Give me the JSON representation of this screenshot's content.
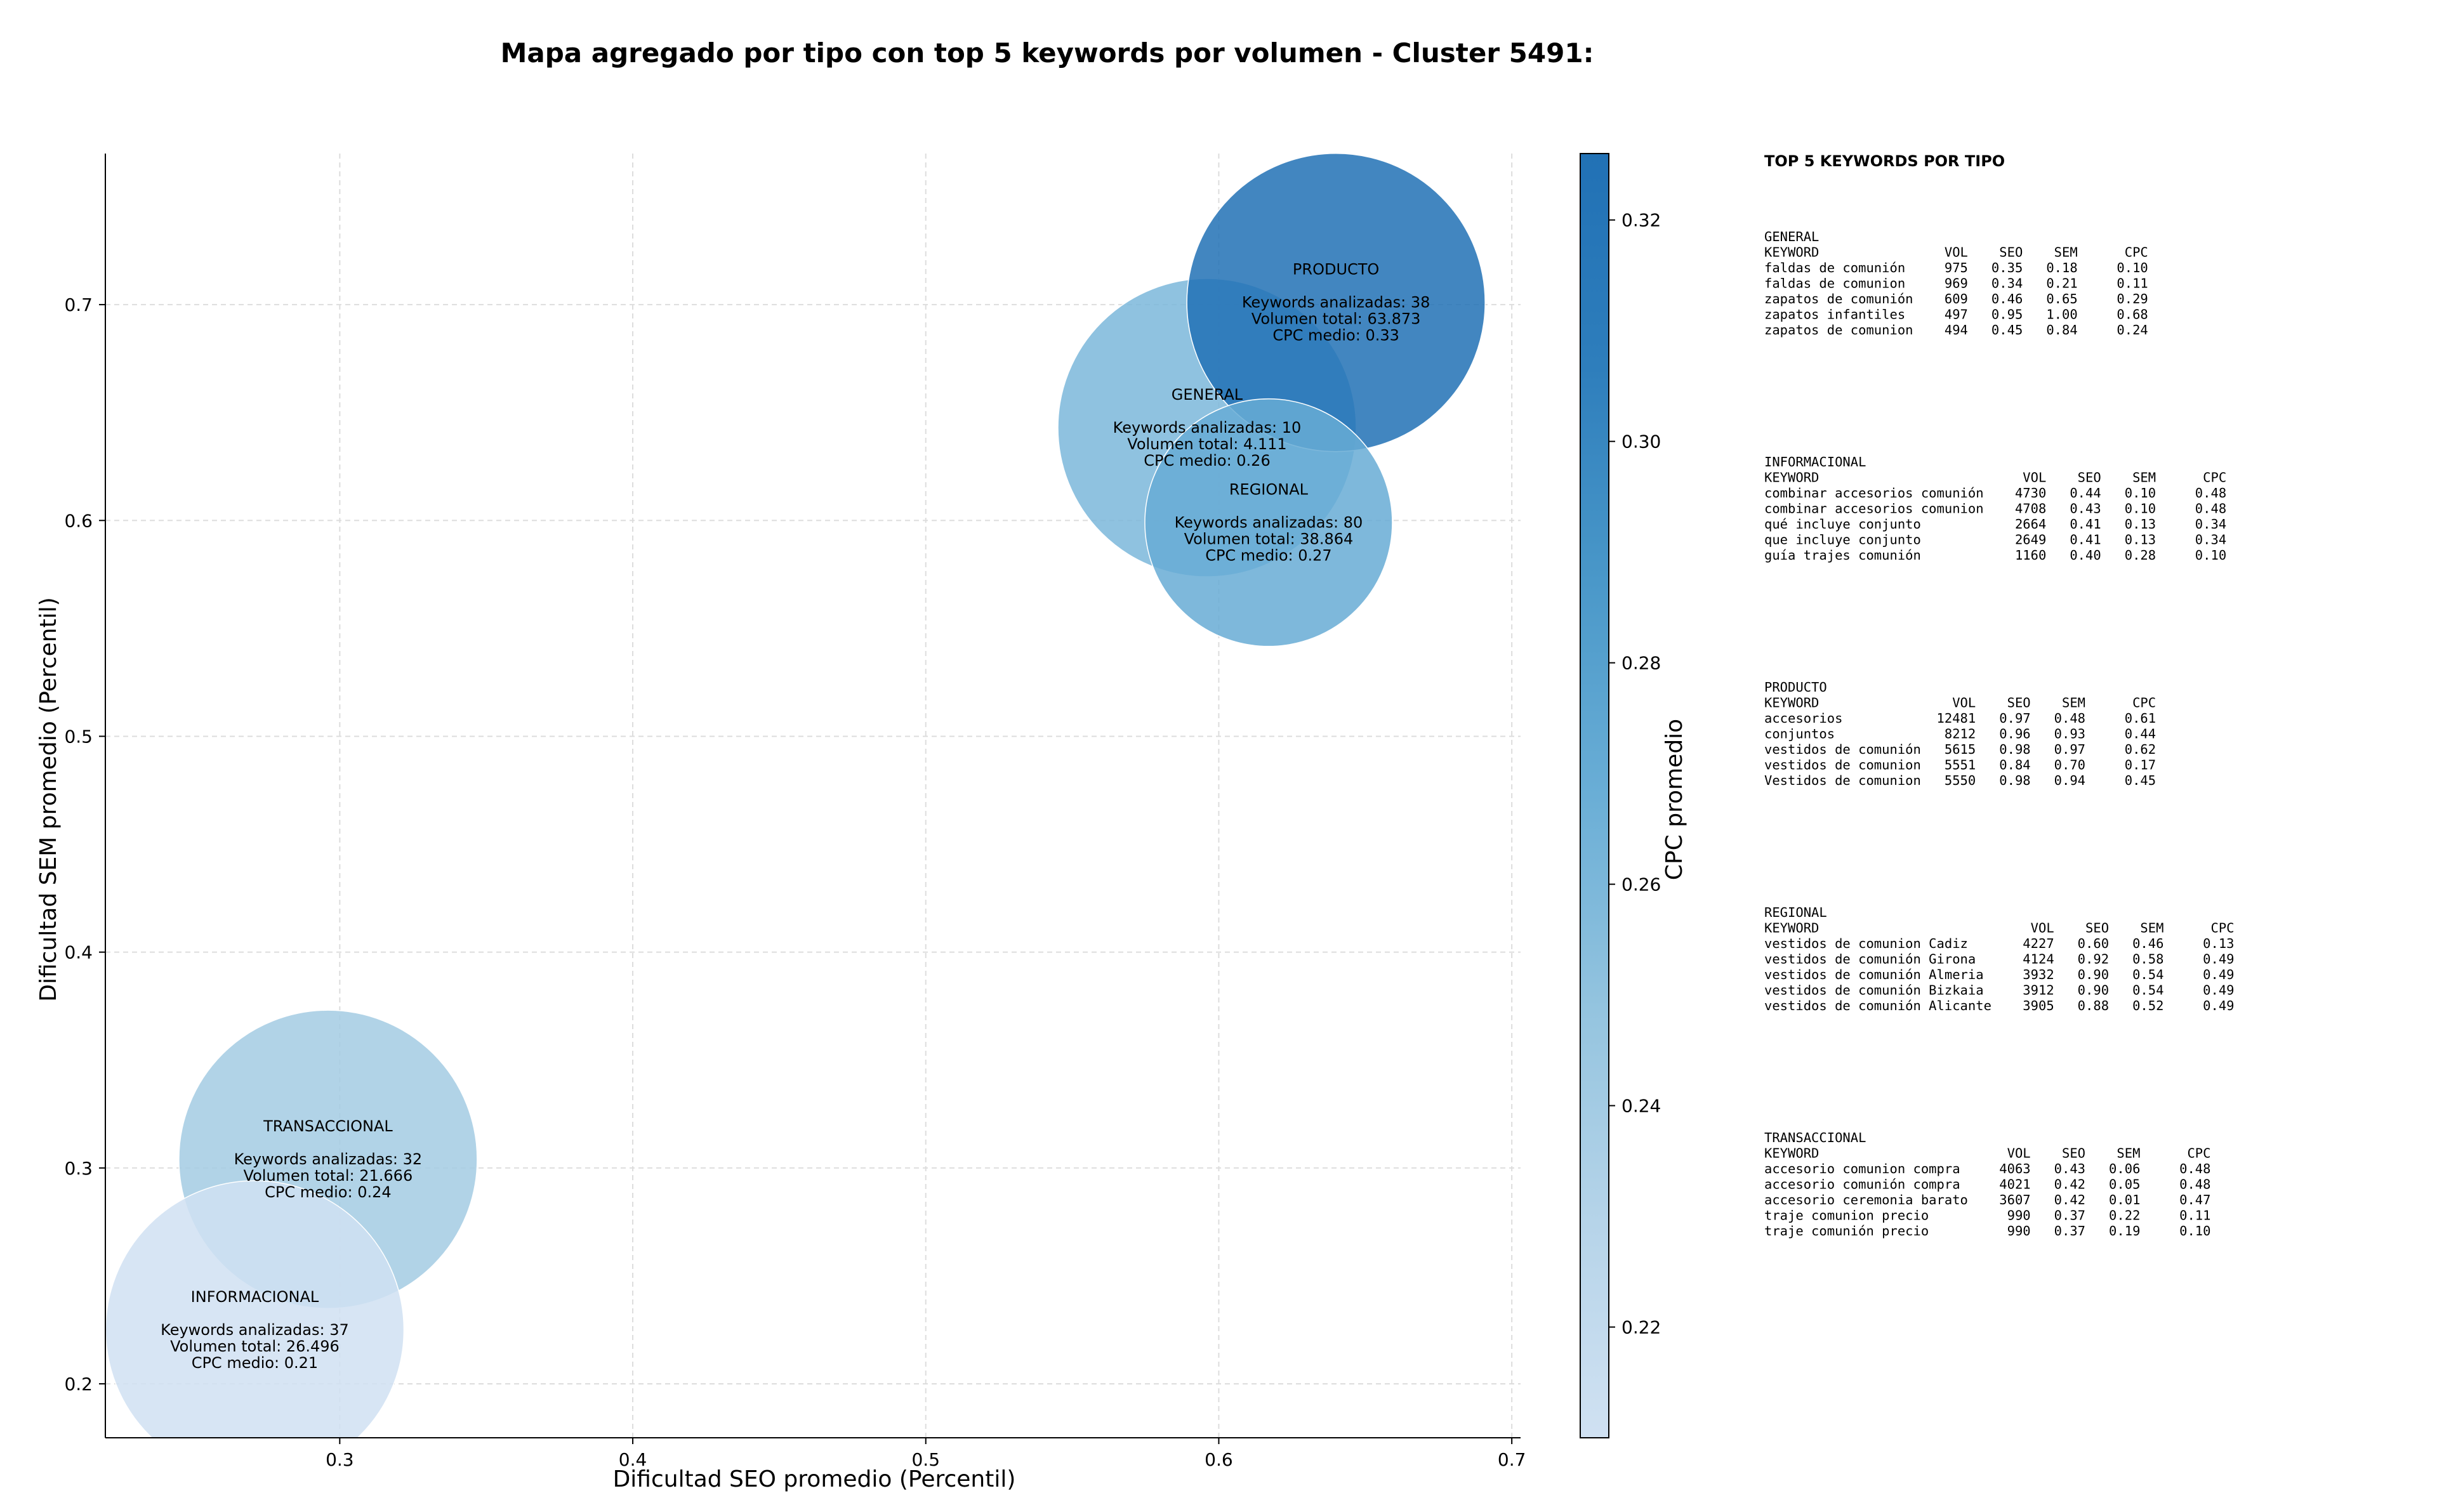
{
  "chart_data": {
    "type": "scatter",
    "title": "Mapa agregado por tipo con top 5 keywords por volumen - Cluster 5491:",
    "xlabel": "Dificultad SEO promedio (Percentil)",
    "ylabel": "Dificultad SEM promedio (Percentil)",
    "xlim": [
      0.22,
      0.703
    ],
    "ylim": [
      0.175,
      0.77
    ],
    "xticks": [
      0.3,
      0.4,
      0.5,
      0.6,
      0.7
    ],
    "xtick_labels": [
      "0.3",
      "0.4",
      "0.5",
      "0.6",
      "0.7"
    ],
    "yticks": [
      0.2,
      0.3,
      0.4,
      0.5,
      0.6,
      0.7
    ],
    "ytick_labels": [
      "0.2",
      "0.3",
      "0.4",
      "0.5",
      "0.6",
      "0.7"
    ],
    "grid": true,
    "colorbar": {
      "label": "CPC promedio",
      "range": [
        0.21,
        0.326
      ],
      "ticks": [
        0.22,
        0.24,
        0.26,
        0.28,
        0.3,
        0.32
      ],
      "tick_labels": [
        "0.22",
        "0.24",
        "0.26",
        "0.28",
        "0.30",
        "0.32"
      ],
      "colors": [
        "#d0e1f2",
        "#b6d4e9",
        "#94c4df",
        "#6aaed6",
        "#4a98c9",
        "#2e7ebc",
        "#2171b5"
      ]
    },
    "points": [
      {
        "name": "GENERAL",
        "x": 0.596,
        "y": 0.643,
        "size": 4111,
        "cpc": 0.26,
        "label_lines": [
          "GENERAL",
          "",
          "Keywords analizadas: 10",
          "Volumen total: 4.111",
          "CPC medio: 0.26"
        ]
      },
      {
        "name": "PRODUCTO",
        "x": 0.64,
        "y": 0.701,
        "size": 63873,
        "cpc": 0.33,
        "label_lines": [
          "PRODUCTO",
          "",
          "Keywords analizadas: 38",
          "Volumen total: 63.873",
          "CPC medio: 0.33"
        ]
      },
      {
        "name": "REGIONAL",
        "x": 0.617,
        "y": 0.599,
        "size": 38864,
        "cpc": 0.27,
        "label_lines": [
          "REGIONAL",
          "",
          "Keywords analizadas: 80",
          "Volumen total: 38.864",
          "CPC medio: 0.27"
        ]
      },
      {
        "name": "TRANSACCIONAL",
        "x": 0.296,
        "y": 0.304,
        "size": 21666,
        "cpc": 0.24,
        "label_lines": [
          "TRANSACCIONAL",
          "",
          "Keywords analizadas: 32",
          "Volumen total: 21.666",
          "CPC medio: 0.24"
        ]
      },
      {
        "name": "INFORMACIONAL",
        "x": 0.271,
        "y": 0.225,
        "size": 26496,
        "cpc": 0.21,
        "label_lines": [
          "INFORMACIONAL",
          "",
          "Keywords analizadas: 37",
          "Volumen total: 26.496",
          "CPC medio: 0.21"
        ]
      }
    ],
    "side_panel": {
      "title": "TOP 5 KEYWORDS POR TIPO",
      "blocks": [
        {
          "lines": [
            "GENERAL",
            "KEYWORD                VOL    SEO    SEM      CPC",
            "faldas de comunión     975   0.35   0.18     0.10",
            "faldas de comunion     969   0.34   0.21     0.11",
            "zapatos de comunión    609   0.46   0.65     0.29",
            "zapatos infantiles     497   0.95   1.00     0.68",
            "zapatos de comunion    494   0.45   0.84     0.24"
          ]
        },
        {
          "lines": [
            "INFORMACIONAL",
            "KEYWORD                          VOL    SEO    SEM      CPC",
            "combinar accesorios comunión    4730   0.44   0.10     0.48",
            "combinar accesorios comunion    4708   0.43   0.10     0.48",
            "qué incluye conjunto            2664   0.41   0.13     0.34",
            "que incluye conjunto            2649   0.41   0.13     0.34",
            "guía trajes comunión            1160   0.40   0.28     0.10"
          ]
        },
        {
          "lines": [
            "PRODUCTO",
            "KEYWORD                 VOL    SEO    SEM      CPC",
            "accesorios            12481   0.97   0.48     0.61",
            "conjuntos              8212   0.96   0.93     0.44",
            "vestidos de comunión   5615   0.98   0.97     0.62",
            "vestidos de comunion   5551   0.84   0.70     0.17",
            "Vestidos de comunion   5550   0.98   0.94     0.45"
          ]
        },
        {
          "lines": [
            "REGIONAL",
            "KEYWORD                           VOL    SEO    SEM      CPC",
            "vestidos de comunion Cadiz       4227   0.60   0.46     0.13",
            "vestidos de comunión Girona      4124   0.92   0.58     0.49",
            "vestidos de comunión Almeria     3932   0.90   0.54     0.49",
            "vestidos de comunión Bizkaia     3912   0.90   0.54     0.49",
            "vestidos de comunión Alicante    3905   0.88   0.52     0.49"
          ]
        },
        {
          "lines": [
            "TRANSACCIONAL",
            "KEYWORD                        VOL    SEO    SEM      CPC",
            "accesorio comunion compra     4063   0.43   0.06     0.48",
            "accesorio comunión compra     4021   0.42   0.05     0.48",
            "accesorio ceremonia barato    3607   0.42   0.01     0.47",
            "traje comunion precio          990   0.37   0.22     0.11",
            "traje comunión precio          990   0.37   0.19     0.10"
          ]
        }
      ]
    }
  }
}
